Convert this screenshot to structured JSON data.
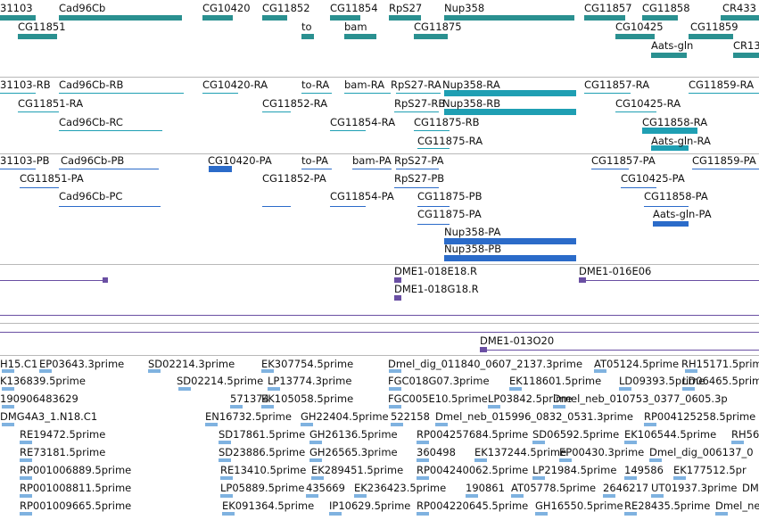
{
  "colors": {
    "gene": "#2a9090",
    "transcript": "#1f9fb3",
    "protein": "#2b6bc9",
    "marker": "#6a4fa3",
    "est": "#7fb2e0",
    "separator": "#b8b8b8"
  },
  "tracks": {
    "genes": [
      "31103",
      "Cad96Cb",
      "CG10420",
      "CG11852",
      "CG11854",
      "RpS27",
      "Nup358",
      "CG11857",
      "CG11858",
      "CR433",
      "CG11851",
      "to",
      "bam",
      "CG11875",
      "CG10425",
      "CG11859",
      "Aats-gln",
      "CR13"
    ],
    "transcripts": [
      "31103-RB",
      "Cad96Cb-RB",
      "CG10420-RA",
      "to-RA",
      "bam-RA",
      "RpS27-RA",
      "Nup358-RA",
      "CG11857-RA",
      "CG11859-RA",
      "CG11851-RA",
      "CG11852-RA",
      "RpS27-RB",
      "Nup358-RB",
      "CG10425-RA",
      "Cad96Cb-RC",
      "CG11854-RA",
      "CG11875-RB",
      "CG11858-RA",
      "CG11875-RA",
      "Aats-gln-RA"
    ],
    "proteins": [
      "31103-PB",
      "Cad96Cb-PB",
      "CG10420-PA",
      "to-PA",
      "bam-PA",
      "RpS27-PA",
      "CG11857-PA",
      "CG11859-PA",
      "CG11851-PA",
      "RpS27-PB",
      "CG10425-PA",
      "Cad96Cb-PC",
      "CG11852-PA",
      "CG11854-PA",
      "CG11875-PB",
      "CG11858-PA",
      "CG11875-PA",
      "Aats-gln-PA",
      "Nup358-PA",
      "Nup358-PB"
    ],
    "markers": [
      "DME1-018E18.R",
      "DME1-016E06",
      "DME1-018G18.R"
    ],
    "clones": [
      "DME1-013O20"
    ],
    "ests": [
      "H15.C1",
      "EP03643.3prime",
      "SD02214.3prime",
      "EK307754.5prime",
      "Dmel_dig_011840_0607_2137.3prime",
      "AT05124.5prime",
      "RH15171.5prime",
      "K136839.5prime",
      "SD02214.5prime",
      "LP13774.3prime",
      "FGC018G07.3prime",
      "EK118601.5prime",
      "LD09393.5prime",
      "LD06465.5prime",
      "190906483629",
      "571374",
      "EK105058.5prime",
      "FGC005E10.5prime",
      "LP03842.5prime",
      "Dmel_neb_010753_0377_0605.3p",
      "DMG4A3_1.N18.C1",
      "EN16732.5prime",
      "GH22404.5prime",
      "522158",
      "Dmel_neb_015996_0832_0531.3prime",
      "RP004125258.5prime",
      "RE19472.5prime",
      "SD17861.5prime",
      "GH26136.5prime",
      "RP004257684.5prime",
      "SD06592.5prime",
      "EK106544.5prime",
      "RH56",
      "RE73181.5prime",
      "SD23886.5prime",
      "GH26565.3prime",
      "360498",
      "EK137244.5prime",
      "EP00430.3prime",
      "Dmel_dig_006137_0",
      "RP001006889.5prime",
      "RE13410.5prime",
      "EK289451.5prime",
      "RP004240062.5prime",
      "LP21984.5prime",
      "149586",
      "EK177512.5pr",
      "RP001008811.5prime",
      "LP05889.5prime",
      "435669",
      "EK236423.5prime",
      "190861",
      "AT05778.5prime",
      "2646217",
      "UT01937.3prime",
      "DM",
      "RP001009665.5prime",
      "EK091364.5prime",
      "IP10629.5prime",
      "RP004220645.5prime",
      "GH16550.5prime",
      "RE28435.5prime",
      "Dmel_neb_"
    ]
  }
}
